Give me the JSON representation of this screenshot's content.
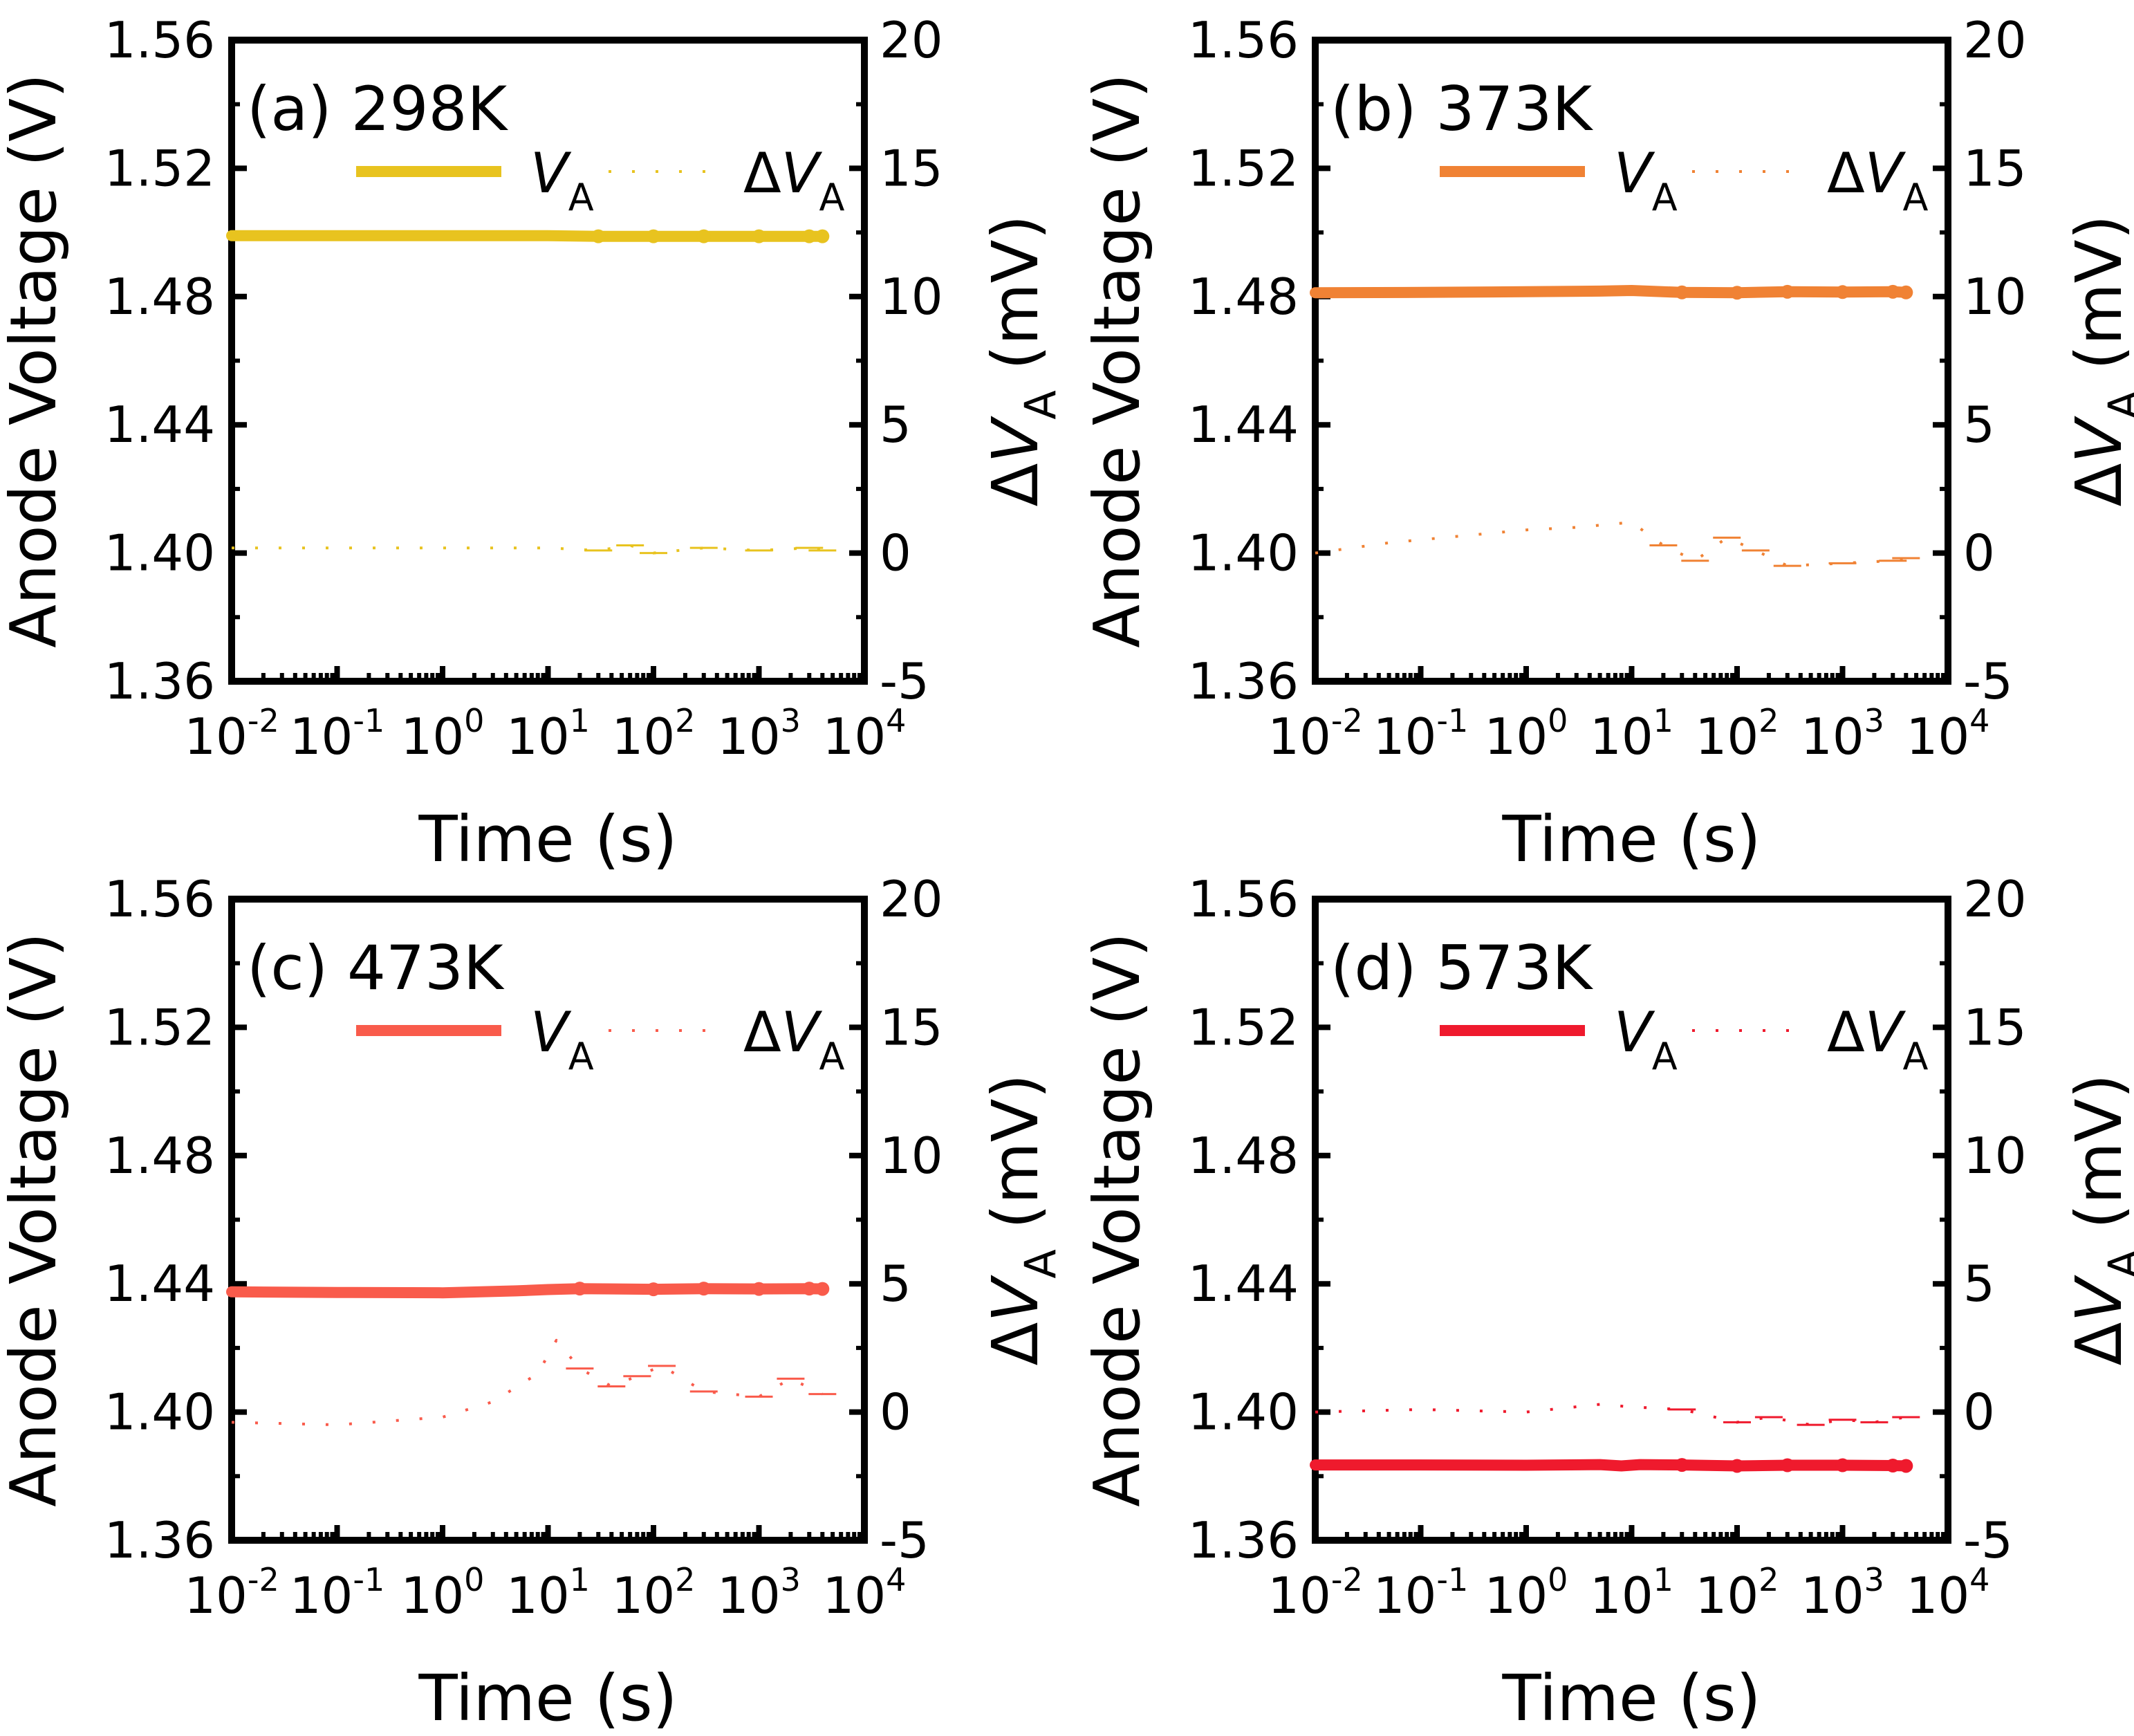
{
  "chart_data": [
    {
      "type": "line",
      "panel_label": "(a)",
      "temperature": "298K",
      "color": "#E8C31F",
      "x_scale": "log",
      "xlim": [
        0.01,
        10000
      ],
      "x_ticks": [
        "-2",
        "-1",
        "0",
        "1",
        "2",
        "3",
        "4"
      ],
      "x_tick_base": "10",
      "xlabel": "Time (s)",
      "ylabel_left": "Anode Voltage (V)",
      "ylim_left": [
        1.36,
        1.56
      ],
      "y_ticks_left": [
        "1.36",
        "1.40",
        "1.44",
        "1.48",
        "1.52",
        "1.56"
      ],
      "ylabel_right_prefix": "Δ",
      "ylabel_right_var": "V",
      "ylabel_right_sub": "A",
      "ylabel_right_unit": "(mV)",
      "ylim_right": [
        -5,
        20
      ],
      "y_ticks_right": [
        "-5",
        "0",
        "5",
        "10",
        "15",
        "20"
      ],
      "legend": {
        "solid_var": "V",
        "solid_sub": "A",
        "dash_prefix": "Δ",
        "dash_var": "V",
        "dash_sub": "A"
      },
      "series": [
        {
          "name": "V_A",
          "axis": "left",
          "style": "solid",
          "x": [
            0.01,
            0.1,
            1,
            10,
            30,
            100,
            300,
            1000,
            3000,
            4000
          ],
          "y": [
            1.499,
            1.499,
            1.499,
            1.499,
            1.4988,
            1.4988,
            1.4988,
            1.4988,
            1.4988,
            1.4988
          ]
        },
        {
          "name": "ΔV_A",
          "axis": "right",
          "style": "dashed",
          "x": [
            0.01,
            0.1,
            1,
            10,
            30,
            60,
            100,
            300,
            1000,
            3000,
            4000
          ],
          "y": [
            0.2,
            0.2,
            0.2,
            0.2,
            0.1,
            0.3,
            0.0,
            0.2,
            0.1,
            0.2,
            0.1
          ]
        }
      ]
    },
    {
      "type": "line",
      "panel_label": "(b)",
      "temperature": "373K",
      "color": "#F08234",
      "x_scale": "log",
      "xlim": [
        0.01,
        10000
      ],
      "x_ticks": [
        "-2",
        "-1",
        "0",
        "1",
        "2",
        "3",
        "4"
      ],
      "x_tick_base": "10",
      "xlabel": "Time (s)",
      "ylabel_left": "Anode Voltage (V)",
      "ylim_left": [
        1.36,
        1.56
      ],
      "y_ticks_left": [
        "1.36",
        "1.40",
        "1.44",
        "1.48",
        "1.52",
        "1.56"
      ],
      "ylabel_right_prefix": "Δ",
      "ylabel_right_var": "V",
      "ylabel_right_sub": "A",
      "ylabel_right_unit": "(mV)",
      "ylim_right": [
        -5,
        20
      ],
      "y_ticks_right": [
        "-5",
        "0",
        "5",
        "10",
        "15",
        "20"
      ],
      "legend": {
        "solid_var": "V",
        "solid_sub": "A",
        "dash_prefix": "Δ",
        "dash_var": "V",
        "dash_sub": "A"
      },
      "series": [
        {
          "name": "V_A",
          "axis": "left",
          "style": "solid",
          "x": [
            0.01,
            0.1,
            1,
            5,
            10,
            30,
            100,
            300,
            1000,
            3000,
            4000
          ],
          "y": [
            1.4812,
            1.4813,
            1.4815,
            1.4817,
            1.4819,
            1.4813,
            1.4812,
            1.4815,
            1.4814,
            1.4815,
            1.4813
          ]
        },
        {
          "name": "ΔV_A",
          "axis": "right",
          "style": "dashed",
          "x": [
            0.01,
            0.05,
            0.3,
            1,
            3,
            10,
            20,
            40,
            80,
            150,
            300,
            1000,
            3000,
            4000
          ],
          "y": [
            0.0,
            0.4,
            0.7,
            0.9,
            1.0,
            1.2,
            0.3,
            -0.3,
            0.6,
            0.1,
            -0.5,
            -0.4,
            -0.3,
            -0.2
          ]
        }
      ]
    },
    {
      "type": "line",
      "panel_label": "(c)",
      "temperature": "473K",
      "color": "#F95B4B",
      "x_scale": "log",
      "xlim": [
        0.01,
        10000
      ],
      "x_ticks": [
        "-2",
        "-1",
        "0",
        "1",
        "2",
        "3",
        "4"
      ],
      "x_tick_base": "10",
      "xlabel": "Time (s)",
      "ylabel_left": "Anode Voltage (V)",
      "ylim_left": [
        1.36,
        1.56
      ],
      "y_ticks_left": [
        "1.36",
        "1.40",
        "1.44",
        "1.48",
        "1.52",
        "1.56"
      ],
      "ylabel_right_prefix": "Δ",
      "ylabel_right_var": "V",
      "ylabel_right_sub": "A",
      "ylabel_right_unit": "(mV)",
      "ylim_right": [
        -5,
        20
      ],
      "y_ticks_right": [
        "-5",
        "0",
        "5",
        "10",
        "15",
        "20"
      ],
      "legend": {
        "solid_var": "V",
        "solid_sub": "A",
        "dash_prefix": "Δ",
        "dash_var": "V",
        "dash_sub": "A"
      },
      "series": [
        {
          "name": "V_A",
          "axis": "left",
          "style": "solid",
          "x": [
            0.01,
            0.1,
            1,
            5,
            10,
            20,
            100,
            300,
            1000,
            3000,
            4000
          ],
          "y": [
            1.4375,
            1.4373,
            1.4372,
            1.4378,
            1.4382,
            1.4385,
            1.4383,
            1.4385,
            1.4384,
            1.4385,
            1.4384
          ]
        },
        {
          "name": "ΔV_A",
          "axis": "right",
          "style": "dashed",
          "x": [
            0.01,
            0.1,
            1,
            3,
            8,
            12,
            20,
            40,
            70,
            120,
            300,
            1000,
            2000,
            4000
          ],
          "y": [
            -0.4,
            -0.5,
            -0.2,
            0.4,
            1.5,
            2.8,
            1.7,
            1.0,
            1.4,
            1.8,
            0.8,
            0.6,
            1.3,
            0.7
          ]
        }
      ]
    },
    {
      "type": "line",
      "panel_label": "(d)",
      "temperature": "573K",
      "color": "#EF1A2D",
      "x_scale": "log",
      "xlim": [
        0.01,
        10000
      ],
      "x_ticks": [
        "-2",
        "-1",
        "0",
        "1",
        "2",
        "3",
        "4"
      ],
      "x_tick_base": "10",
      "xlabel": "Time (s)",
      "ylabel_left": "Anode Voltage (V)",
      "ylim_left": [
        1.36,
        1.56
      ],
      "y_ticks_left": [
        "1.36",
        "1.40",
        "1.44",
        "1.48",
        "1.52",
        "1.56"
      ],
      "ylabel_right_prefix": "Δ",
      "ylabel_right_var": "V",
      "ylabel_right_sub": "A",
      "ylabel_right_unit": "(mV)",
      "ylim_right": [
        -5,
        20
      ],
      "y_ticks_right": [
        "-5",
        "0",
        "5",
        "10",
        "15",
        "20"
      ],
      "legend": {
        "solid_var": "V",
        "solid_sub": "A",
        "dash_prefix": "Δ",
        "dash_var": "V",
        "dash_sub": "A"
      },
      "series": [
        {
          "name": "V_A",
          "axis": "left",
          "style": "solid",
          "x": [
            0.01,
            0.1,
            1,
            5,
            8,
            12,
            30,
            100,
            300,
            1000,
            3000,
            4000
          ],
          "y": [
            1.3835,
            1.3835,
            1.3834,
            1.3836,
            1.3832,
            1.3836,
            1.3835,
            1.3832,
            1.3834,
            1.3834,
            1.3833,
            1.3832
          ]
        },
        {
          "name": "ΔV_A",
          "axis": "right",
          "style": "dashed",
          "x": [
            0.01,
            0.1,
            1,
            5,
            10,
            30,
            100,
            200,
            500,
            1000,
            2000,
            4000
          ],
          "y": [
            0.0,
            0.1,
            0.0,
            0.3,
            0.2,
            0.1,
            -0.4,
            -0.2,
            -0.5,
            -0.3,
            -0.4,
            -0.2
          ]
        }
      ]
    }
  ]
}
